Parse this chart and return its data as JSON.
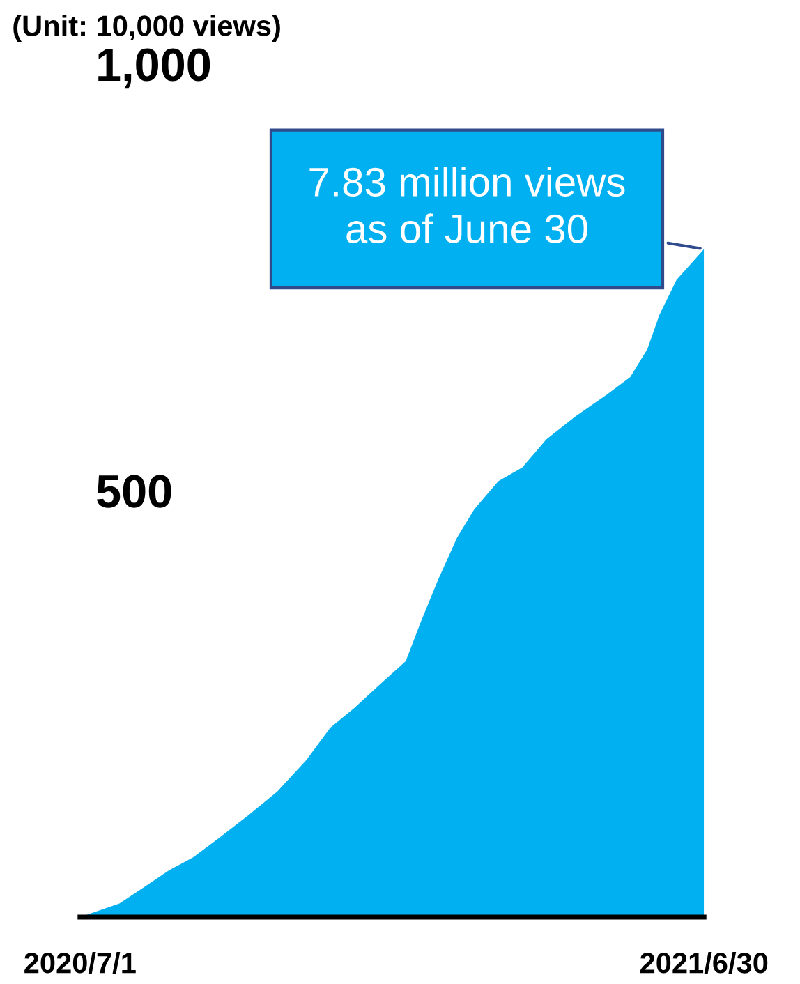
{
  "chart_data": {
    "type": "area",
    "annotations": [
      "(Unit: 10,000 views)",
      {
        "text": "7.83 million views\nas of June 30",
        "x": "2021-06-30",
        "y": 783
      }
    ],
    "x": [
      "2020-07-01",
      "2020-07-24",
      "2020-08-08",
      "2020-08-22",
      "2020-09-05",
      "2020-09-19",
      "2020-10-07",
      "2020-10-24",
      "2020-11-10",
      "2020-11-24",
      "2020-12-08",
      "2020-12-22",
      "2021-01-07",
      "2021-01-16",
      "2021-01-26",
      "2021-02-06",
      "2021-02-16",
      "2021-03-02",
      "2021-03-16",
      "2021-03-30",
      "2021-04-16",
      "2021-05-04",
      "2021-05-18",
      "2021-05-28",
      "2021-06-04",
      "2021-06-14",
      "2021-06-30"
    ],
    "series": [
      {
        "color": "#00b0f0",
        "values": [
          0,
          16,
          36,
          55,
          70,
          91,
          119,
          147,
          184,
          222,
          245,
          271,
          300,
          347,
          396,
          445,
          478,
          511,
          527,
          560,
          587,
          612,
          633,
          666,
          706,
          747,
          783
        ]
      }
    ],
    "xlim": [
      "2020-07-01",
      "2021-06-30"
    ],
    "xticks": [
      {
        "value": "2020-07-01",
        "label": "2020/7/1"
      },
      {
        "value": "2021-06-30",
        "label": "2021/6/30"
      }
    ],
    "ylim": [
      0,
      1000
    ],
    "yticks": [
      {
        "value": 500,
        "label": "500"
      },
      {
        "value": 1000,
        "label": "1,000"
      }
    ],
    "grid": false,
    "legend": false
  }
}
